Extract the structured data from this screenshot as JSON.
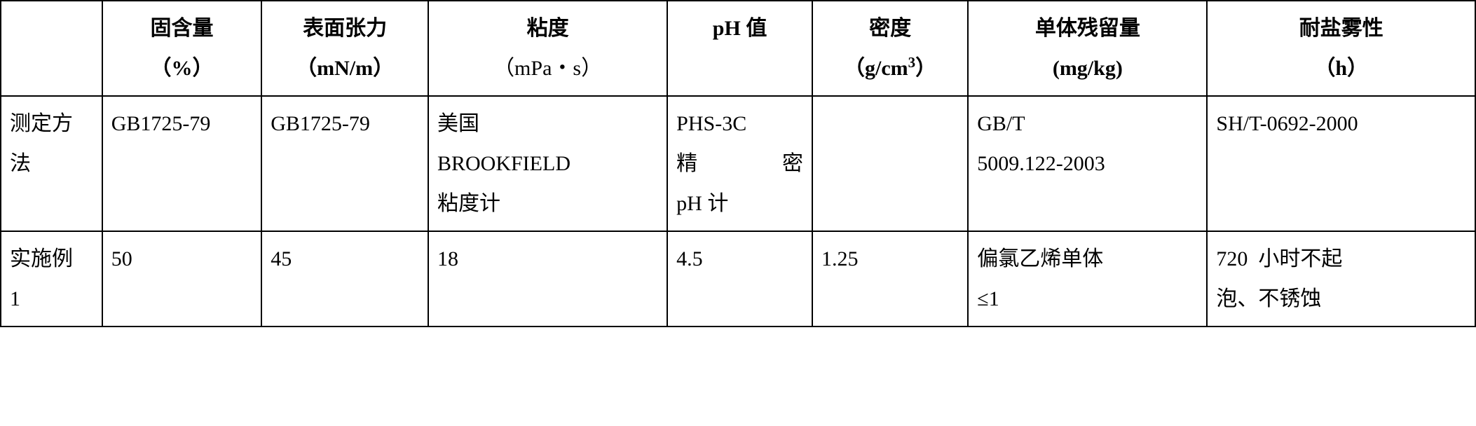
{
  "headers": {
    "c0": "",
    "c1_l1": "固含量",
    "c1_l2_pre": "（",
    "c1_l2_b": "%",
    "c1_l2_post": "）",
    "c2_l1": "表面张力",
    "c2_l2_pre": "（",
    "c2_l2_b": "mN/m",
    "c2_l2_post": "）",
    "c3_l1": "粘度",
    "c3_l2": "（mPa・s）",
    "c4_b": "pH",
    "c4_t": " 值",
    "c5_l1": "密度",
    "c5_l2_pre": "（",
    "c5_l2_b1": "g/cm",
    "c5_l2_sup": "3",
    "c5_l2_post": "）",
    "c6_l1": "单体残留量",
    "c6_l2_b": "(mg/kg)",
    "c7_l1": "耐盐雾性",
    "c7_l2_pre": "（",
    "c7_l2_b": "h",
    "c7_l2_post": "）"
  },
  "row1": {
    "c0_l1": "测定方",
    "c0_l2": "法",
    "c1": "GB1725-79",
    "c2": "GB1725-79",
    "c3_l1": "美国",
    "c3_l2": "BROOKFIELD",
    "c3_l3": "粘度计",
    "c4_l1": "PHS-3C",
    "c4_l2a": "精",
    "c4_l2b": "密",
    "c4_l3": "pH 计",
    "c5": "",
    "c6_l1": "GB/T",
    "c6_l2": "5009.122-2003",
    "c7": "SH/T-0692-2000"
  },
  "row2": {
    "c0_l1": "实施例",
    "c0_l2": "1",
    "c1": "50",
    "c2": "45",
    "c3": "18",
    "c4": "4.5",
    "c5": "1.25",
    "c6_l1": "偏氯乙烯单体",
    "c6_l2": "≤1",
    "c7_l1": "720  小时不起",
    "c7_l2": "泡、不锈蚀"
  }
}
